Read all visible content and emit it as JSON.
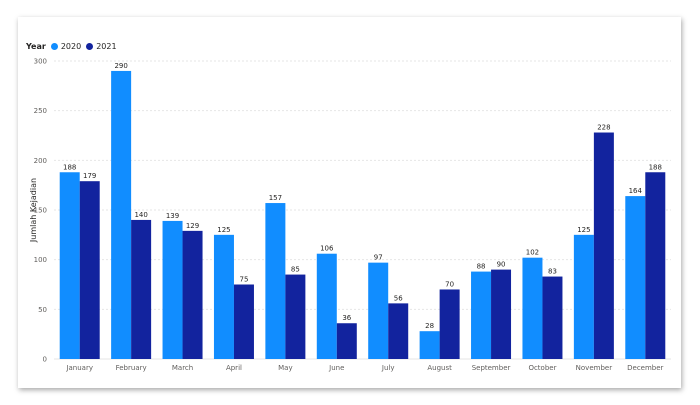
{
  "colors": {
    "2020": "#118dff",
    "2021": "#12239e",
    "grid": "#e6e6e6"
  },
  "chart_data": {
    "type": "bar",
    "legend_title": "Year",
    "legend_position": "top-left",
    "categories": [
      "January",
      "February",
      "March",
      "April",
      "May",
      "June",
      "July",
      "August",
      "September",
      "October",
      "November",
      "December"
    ],
    "series": [
      {
        "name": "2020",
        "values": [
          188,
          290,
          139,
          125,
          157,
          106,
          97,
          28,
          88,
          102,
          125,
          164
        ]
      },
      {
        "name": "2021",
        "values": [
          179,
          140,
          129,
          75,
          85,
          36,
          56,
          70,
          90,
          83,
          228,
          188
        ]
      }
    ],
    "ylabel": "Jumlah Kejadian",
    "xlabel": "",
    "ylim": [
      0,
      300
    ],
    "yticks": [
      0,
      50,
      100,
      150,
      200,
      250,
      300
    ],
    "grid": true
  }
}
